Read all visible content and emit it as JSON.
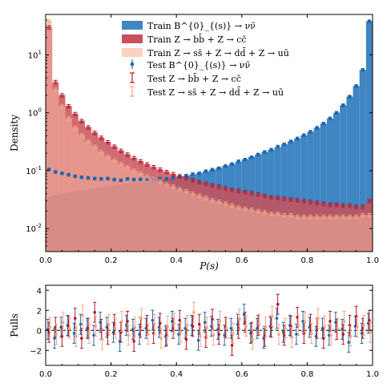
{
  "chart_data": [
    {
      "type": "bar",
      "panel": "main",
      "xlabel": "P(s)",
      "ylabel": "Density",
      "xlim": [
        0.0,
        1.0
      ],
      "ylim": [
        0.004,
        50
      ],
      "yscale": "log",
      "x_ticks": [
        "0.0",
        "0.2",
        "0.4",
        "0.6",
        "0.8",
        "1.0"
      ],
      "x_tick_values": [
        0.0,
        0.2,
        0.4,
        0.6,
        0.8,
        1.0
      ],
      "y_ticks": [
        "10^{-2}",
        "10^{-1}",
        "10^{0}",
        "10^{1}"
      ],
      "y_tick_values": [
        0.01,
        0.1,
        1,
        10
      ],
      "legend_position": "top-center",
      "bins": 50,
      "colors": {
        "train_sig": "#3f86c3",
        "train_bb": "#c9505a",
        "train_ss": "#f6b8a0",
        "test_sig": "#2166ac",
        "test_bb": "#b2182b",
        "test_ss": "#f4a582"
      },
      "series": [
        {
          "name": "Train B^{0}_{(s)} → νν̄",
          "kind": "filled-histogram",
          "values": [
            0.035,
            0.038,
            0.04,
            0.042,
            0.044,
            0.046,
            0.048,
            0.05,
            0.052,
            0.054,
            0.056,
            0.058,
            0.06,
            0.062,
            0.064,
            0.066,
            0.068,
            0.07,
            0.072,
            0.075,
            0.078,
            0.082,
            0.086,
            0.091,
            0.097,
            0.104,
            0.112,
            0.121,
            0.131,
            0.143,
            0.157,
            0.173,
            0.19,
            0.21,
            0.23,
            0.255,
            0.285,
            0.32,
            0.36,
            0.41,
            0.47,
            0.55,
            0.65,
            0.8,
            1.0,
            1.35,
            1.9,
            2.9,
            5.5,
            38.0
          ]
        },
        {
          "name": "Train Z → bb̄ + Z → cc̄",
          "kind": "filled-histogram",
          "values": [
            30.0,
            3.3,
            2.0,
            1.3,
            0.95,
            0.72,
            0.56,
            0.45,
            0.37,
            0.31,
            0.26,
            0.22,
            0.19,
            0.165,
            0.145,
            0.128,
            0.115,
            0.104,
            0.095,
            0.087,
            0.08,
            0.074,
            0.069,
            0.064,
            0.06,
            0.056,
            0.053,
            0.05,
            0.047,
            0.045,
            0.043,
            0.041,
            0.039,
            0.037,
            0.035,
            0.034,
            0.033,
            0.032,
            0.031,
            0.03,
            0.029,
            0.028,
            0.027,
            0.026,
            0.026,
            0.025,
            0.025,
            0.024,
            0.024,
            0.03
          ]
        },
        {
          "name": "Train Z → ss̄ + Z → dd̄ + Z → uū",
          "kind": "filled-histogram",
          "values": [
            38.0,
            2.5,
            1.3,
            0.8,
            0.55,
            0.41,
            0.32,
            0.26,
            0.21,
            0.175,
            0.15,
            0.13,
            0.115,
            0.1,
            0.09,
            0.08,
            0.072,
            0.065,
            0.058,
            0.053,
            0.048,
            0.044,
            0.04,
            0.037,
            0.034,
            0.031,
            0.029,
            0.027,
            0.025,
            0.023,
            0.022,
            0.021,
            0.02,
            0.019,
            0.018,
            0.018,
            0.017,
            0.017,
            0.016,
            0.016,
            0.016,
            0.016,
            0.016,
            0.016,
            0.016,
            0.016,
            0.016,
            0.016,
            0.017,
            0.017
          ]
        },
        {
          "name": "Test B^{0}_{(s)} → νν̄",
          "kind": "points",
          "values": [
            0.105,
            0.095,
            0.09,
            0.085,
            0.08,
            0.077,
            0.075,
            0.073,
            0.072,
            0.073,
            0.07,
            0.068,
            0.072,
            0.07,
            0.071,
            0.072,
            0.07,
            0.073,
            0.072,
            0.075,
            0.078,
            0.082,
            0.087,
            0.09,
            0.098,
            0.104,
            0.11,
            0.12,
            0.13,
            0.145,
            0.155,
            0.17,
            0.19,
            0.21,
            0.23,
            0.26,
            0.285,
            0.32,
            0.36,
            0.41,
            0.47,
            0.55,
            0.65,
            0.8,
            1.0,
            1.35,
            1.9,
            2.9,
            5.5,
            38.0
          ]
        },
        {
          "name": "Test Z → bb̄ + Z → cc̄",
          "kind": "points",
          "values": [
            30.0,
            3.4,
            2.0,
            1.3,
            0.95,
            0.72,
            0.56,
            0.45,
            0.37,
            0.31,
            0.26,
            0.22,
            0.19,
            0.165,
            0.145,
            0.128,
            0.115,
            0.104,
            0.095,
            0.087,
            0.08,
            0.074,
            0.069,
            0.064,
            0.06,
            0.056,
            0.053,
            0.05,
            0.047,
            0.045,
            0.043,
            0.041,
            0.039,
            0.037,
            0.035,
            0.034,
            0.033,
            0.032,
            0.031,
            0.03,
            0.029,
            0.028,
            0.027,
            0.026,
            0.026,
            0.025,
            0.025,
            0.024,
            0.024,
            0.03
          ]
        },
        {
          "name": "Test Z → ss̄ + Z → dd̄ + Z → uū",
          "kind": "points",
          "values": [
            38.0,
            2.5,
            1.3,
            0.8,
            0.55,
            0.41,
            0.32,
            0.26,
            0.21,
            0.175,
            0.15,
            0.13,
            0.115,
            0.1,
            0.09,
            0.08,
            0.072,
            0.065,
            0.058,
            0.053,
            0.048,
            0.044,
            0.04,
            0.037,
            0.034,
            0.031,
            0.029,
            0.027,
            0.025,
            0.023,
            0.022,
            0.021,
            0.02,
            0.019,
            0.018,
            0.018,
            0.017,
            0.017,
            0.016,
            0.016,
            0.016,
            0.016,
            0.016,
            0.016,
            0.016,
            0.016,
            0.016,
            0.016,
            0.017,
            0.017
          ]
        }
      ]
    },
    {
      "type": "scatter",
      "panel": "pulls",
      "ylabel": "Pulls",
      "xlim": [
        0.0,
        1.0
      ],
      "ylim": [
        -3.5,
        4.5
      ],
      "x_ticks": [
        "0.0",
        "0.2",
        "0.4",
        "0.6",
        "0.8",
        "1.0"
      ],
      "x_tick_values": [
        0.0,
        0.2,
        0.4,
        0.6,
        0.8,
        1.0
      ],
      "y_ticks": [
        "−2",
        "0",
        "2",
        "4"
      ],
      "y_tick_values": [
        -2,
        0,
        2,
        4
      ],
      "reference_line": 0,
      "series": [
        {
          "name": "B^{0}_{(s)} → νν̄",
          "values": [
            0.1,
            -0.8,
            0.3,
            0.5,
            -0.3,
            0.6,
            0.2,
            -0.5,
            0.8,
            0.3,
            -0.2,
            -1.1,
            0.5,
            0.1,
            -0.4,
            0.2,
            1.0,
            0.3,
            -0.6,
            0.9,
            -0.4,
            0.2,
            0.5,
            -1.0,
            0.8,
            0.4,
            0.1,
            -0.5,
            0.2,
            0.6,
            1.6,
            -0.3,
            0.2,
            -0.8,
            0.4,
            1.2,
            -0.2,
            0.5,
            -0.4,
            0.9,
            0.3,
            -0.6,
            0.2,
            -0.5,
            0.8,
            0.1,
            -1.2,
            0.4,
            -0.3,
            0.7
          ]
        },
        {
          "name": "Z → bb̄ + Z → cc̄",
          "values": [
            -0.2,
            0.3,
            -0.6,
            0.4,
            1.2,
            -0.8,
            0.2,
            1.8,
            0.1,
            -0.4,
            0.6,
            -0.2,
            0.9,
            -1.1,
            0.3,
            0.5,
            -0.3,
            0.7,
            -0.5,
            0.2,
            1.0,
            -0.9,
            0.4,
            0.6,
            -0.7,
            1.1,
            -0.4,
            0.3,
            -1.5,
            0.2,
            0.8,
            -0.2,
            0.5,
            -0.6,
            0.3,
            2.6,
            -0.5,
            0.4,
            1.3,
            -0.3,
            0.6,
            0.2,
            -0.8,
            0.9,
            0.1,
            -0.4,
            0.5,
            1.4,
            0.2,
            1.0
          ]
        },
        {
          "name": "Z → ss̄ + Z → dd̄ + Z → uū",
          "values": [
            0.3,
            -0.4,
            0.8,
            0.2,
            -0.6,
            1.5,
            -0.3,
            0.4,
            -0.9,
            0.6,
            0.2,
            0.9,
            -0.5,
            0.3,
            1.2,
            -0.4,
            0.6,
            -0.8,
            0.4,
            0.7,
            -0.2,
            0.5,
            1.8,
            -0.6,
            0.3,
            -0.5,
            0.9,
            0.2,
            -0.3,
            1.1,
            0.4,
            -0.9,
            0.6,
            0.3,
            1.4,
            -0.4,
            0.2,
            -0.7,
            0.5,
            0.8,
            -0.3,
            1.2,
            0.4,
            -0.5,
            0.2,
            0.9,
            -0.6,
            0.3,
            0.5,
            -0.2
          ]
        }
      ]
    }
  ]
}
